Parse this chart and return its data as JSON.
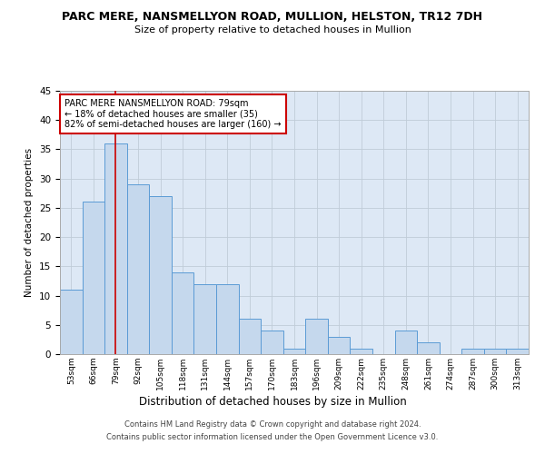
{
  "title1": "PARC MERE, NANSMELLYON ROAD, MULLION, HELSTON, TR12 7DH",
  "title2": "Size of property relative to detached houses in Mullion",
  "xlabel": "Distribution of detached houses by size in Mullion",
  "ylabel": "Number of detached properties",
  "footer1": "Contains HM Land Registry data © Crown copyright and database right 2024.",
  "footer2": "Contains public sector information licensed under the Open Government Licence v3.0.",
  "categories": [
    "53sqm",
    "66sqm",
    "79sqm",
    "92sqm",
    "105sqm",
    "118sqm",
    "131sqm",
    "144sqm",
    "157sqm",
    "170sqm",
    "183sqm",
    "196sqm",
    "209sqm",
    "222sqm",
    "235sqm",
    "248sqm",
    "261sqm",
    "274sqm",
    "287sqm",
    "300sqm",
    "313sqm"
  ],
  "values": [
    11,
    26,
    36,
    29,
    27,
    14,
    12,
    12,
    6,
    4,
    1,
    6,
    3,
    1,
    0,
    4,
    2,
    0,
    1,
    1,
    1
  ],
  "bar_color": "#c5d8ed",
  "bar_edge_color": "#5b9bd5",
  "highlight_index": 2,
  "highlight_line_color": "#cc0000",
  "annotation_title": "PARC MERE NANSMELLYON ROAD: 79sqm",
  "annotation_line1": "← 18% of detached houses are smaller (35)",
  "annotation_line2": "82% of semi-detached houses are larger (160) →",
  "annotation_box_color": "#ffffff",
  "annotation_box_edge_color": "#cc0000",
  "ylim": [
    0,
    45
  ],
  "yticks": [
    0,
    5,
    10,
    15,
    20,
    25,
    30,
    35,
    40,
    45
  ],
  "background_color": "#ffffff",
  "axes_bg_color": "#dde8f5",
  "grid_color": "#c0ccd8"
}
